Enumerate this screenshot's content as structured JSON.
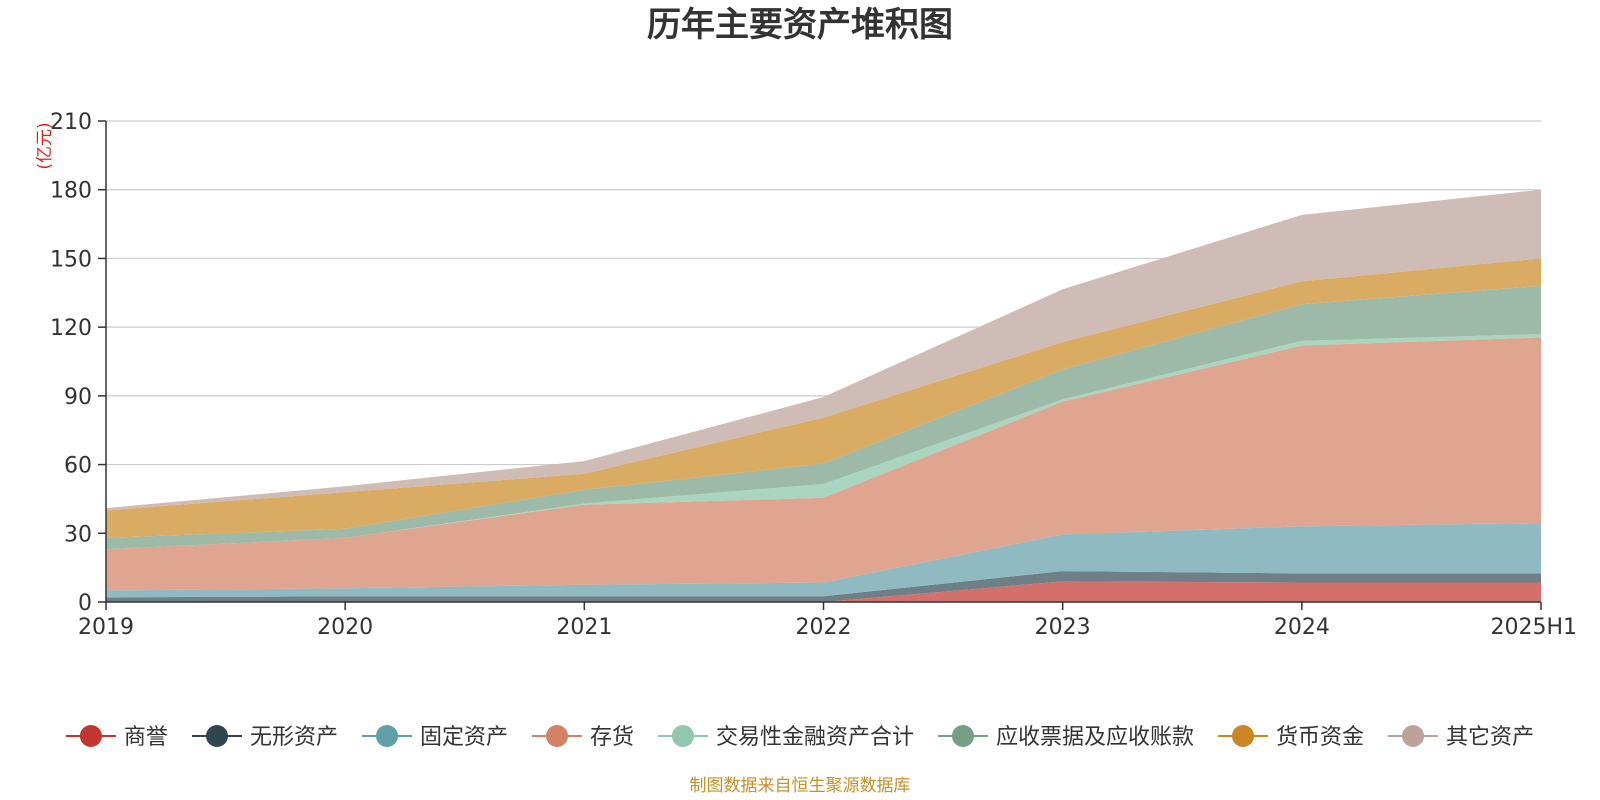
{
  "chart_data": {
    "type": "area",
    "stacked": true,
    "title": "历年主要资产堆积图",
    "unit_label": "(亿元)",
    "source": "制图数据来自恒生聚源数据库",
    "categories": [
      "2019",
      "2020",
      "2021",
      "2022",
      "2023",
      "2024",
      "2025H1"
    ],
    "ylim": [
      0,
      210
    ],
    "yticks": [
      "0",
      "30",
      "60",
      "90",
      "120",
      "150",
      "180",
      "210"
    ],
    "grid": true,
    "legend_position": "bottom",
    "series": [
      {
        "name": "商誉",
        "color": "#c23531",
        "fill": "#d4706c",
        "values": [
          0,
          0,
          0,
          0,
          9,
          8.5,
          8.5
        ]
      },
      {
        "name": "无形资产",
        "color": "#2f4554",
        "fill": "#6e7f87",
        "values": [
          2,
          2.5,
          2.5,
          2.5,
          4.5,
          4,
          4
        ]
      },
      {
        "name": "固定资产",
        "color": "#61a0a8",
        "fill": "#8fbac2",
        "values": [
          3,
          3.5,
          5,
          6,
          16,
          20.5,
          22
        ]
      },
      {
        "name": "存货",
        "color": "#d48265",
        "fill": "#dfa590",
        "values": [
          18,
          22,
          35,
          37,
          58,
          79,
          81
        ]
      },
      {
        "name": "交易性金融资产合计",
        "color": "#91c7ae",
        "fill": "#aad5c0",
        "values": [
          0,
          0,
          0.5,
          6,
          1,
          2,
          1.5
        ]
      },
      {
        "name": "应收票据及应收账款",
        "color": "#749f83",
        "fill": "#9cbaa7",
        "values": [
          5,
          4,
          6,
          9,
          13,
          16,
          21
        ]
      },
      {
        "name": "货币资金",
        "color": "#ca8622",
        "fill": "#d9ab63",
        "values": [
          12,
          16,
          7,
          20,
          12,
          10,
          12
        ]
      },
      {
        "name": "其它资产",
        "color": "#bda29a",
        "fill": "#d0bcb6",
        "values": [
          1,
          2.5,
          5.5,
          9,
          23,
          29,
          30
        ]
      }
    ]
  }
}
